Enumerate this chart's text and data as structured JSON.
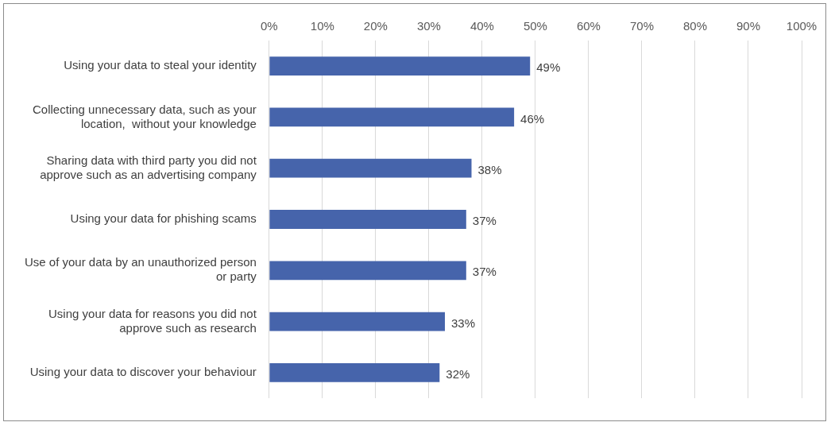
{
  "chart_data": {
    "type": "bar",
    "orientation": "horizontal",
    "categories": [
      "Using your data to steal your identity",
      "Collecting unnecessary data, such as your location,  without your knowledge",
      "Sharing data with third party you did not approve such as an advertising company",
      "Using your data for phishing scams",
      "Use of your data by an unauthorized person or party",
      "Using your data for reasons you did not approve such as research",
      "Using your data to discover your behaviour"
    ],
    "values": [
      49,
      46,
      38,
      37,
      37,
      33,
      32
    ],
    "value_labels": [
      "49%",
      "46%",
      "38%",
      "37%",
      "37%",
      "33%",
      "32%"
    ],
    "color": "#4664ab",
    "xlim": [
      0,
      100
    ],
    "xticks": [
      {
        "value": 0,
        "label": "0%"
      },
      {
        "value": 10,
        "label": "10%"
      },
      {
        "value": 20,
        "label": "20%"
      },
      {
        "value": 30,
        "label": "30%"
      },
      {
        "value": 40,
        "label": "40%"
      },
      {
        "value": 50,
        "label": "50%"
      },
      {
        "value": 60,
        "label": "60%"
      },
      {
        "value": 70,
        "label": "70%"
      },
      {
        "value": 80,
        "label": "80%"
      },
      {
        "value": 90,
        "label": "90%"
      },
      {
        "value": 100,
        "label": "100%"
      }
    ],
    "grid": "x",
    "legend": false
  }
}
